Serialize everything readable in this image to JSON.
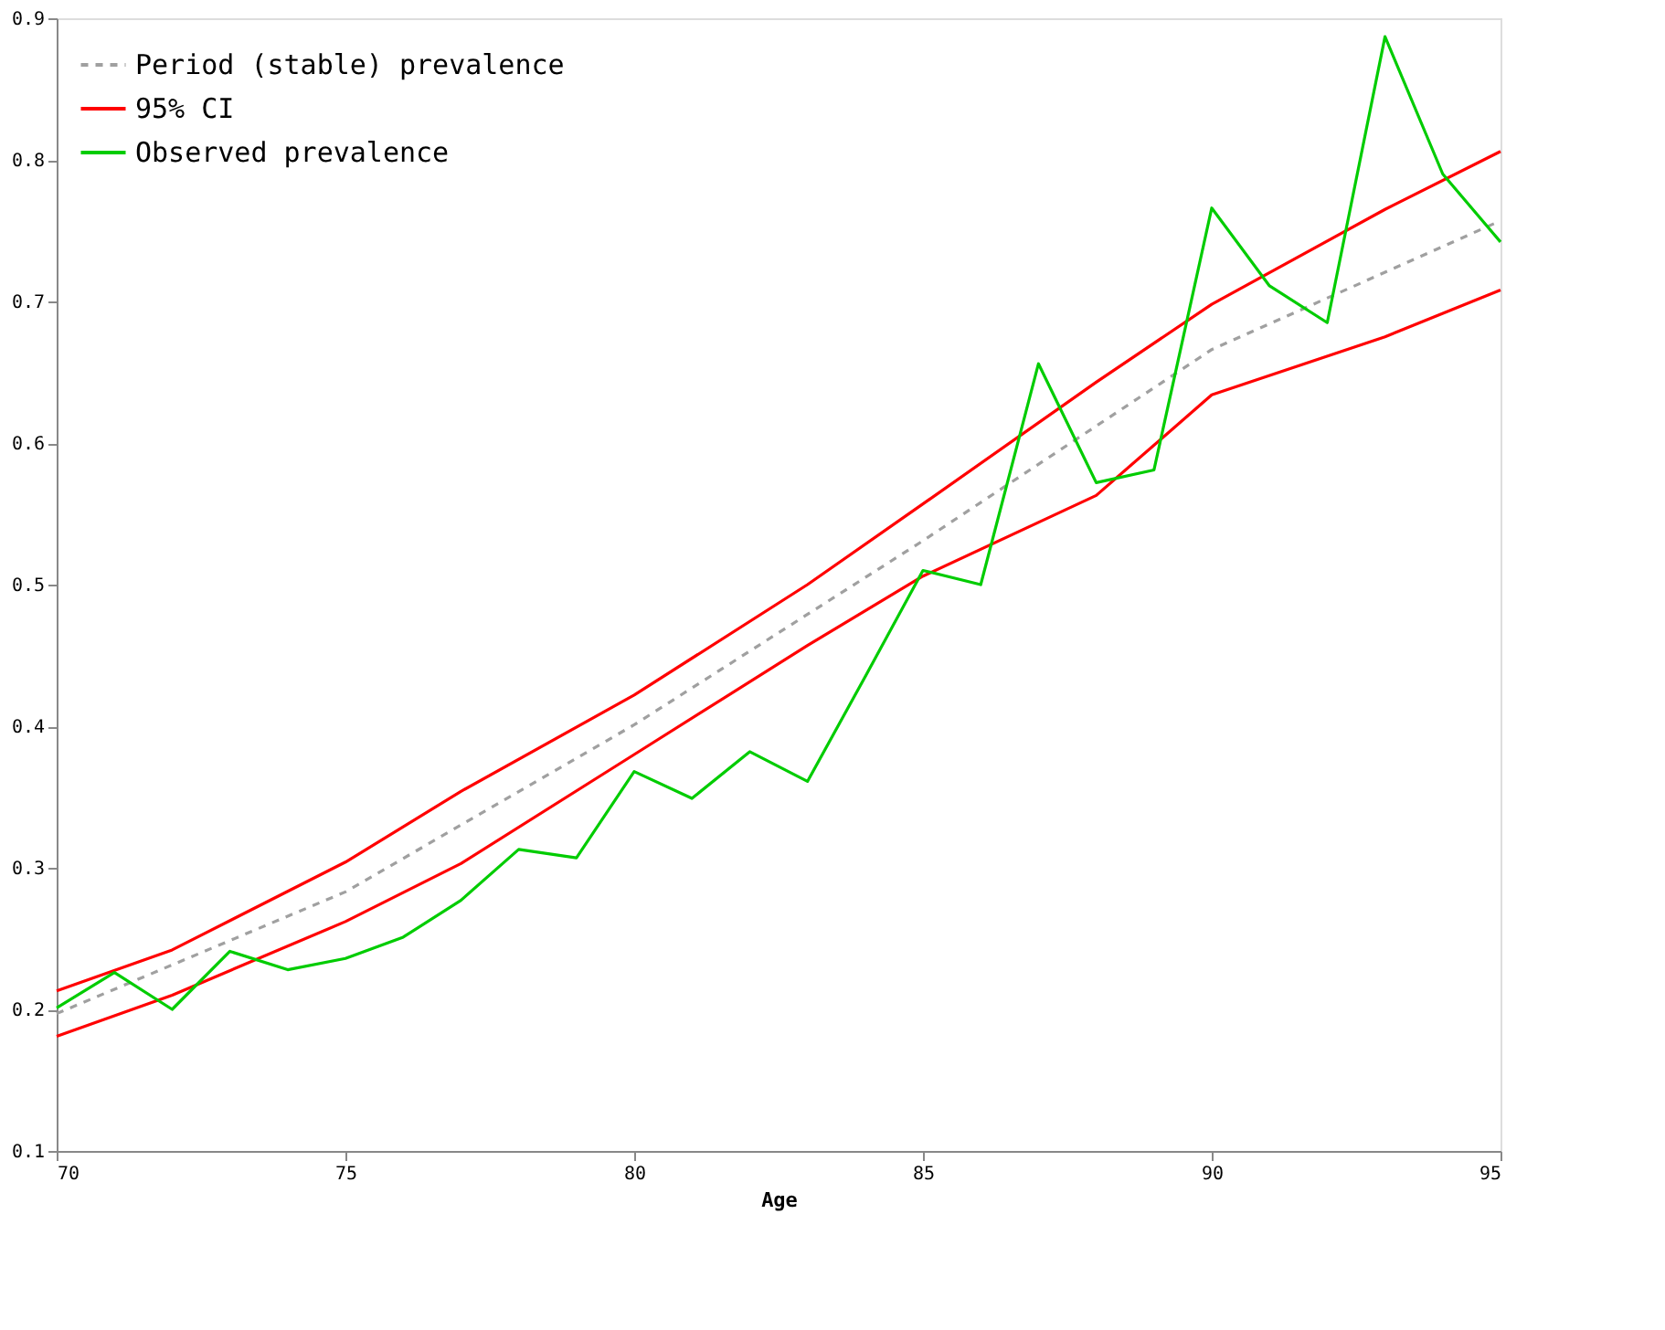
{
  "chart_data": {
    "type": "line",
    "xlabel": "Age",
    "x": [
      70,
      71,
      72,
      73,
      74,
      75,
      76,
      77,
      78,
      79,
      80,
      81,
      82,
      83,
      84,
      85,
      86,
      87,
      88,
      89,
      90,
      91,
      92,
      93,
      94,
      95
    ],
    "series": [
      {
        "name": "Period (stable) prevalence",
        "color": "#a0a0a0",
        "line_style": "dashed",
        "x": [
          70,
          75,
          80,
          85,
          90,
          95
        ],
        "values": [
          0.197,
          0.283,
          0.401,
          0.531,
          0.666,
          0.757
        ]
      },
      {
        "name": "95% CI",
        "color": "#ff0000",
        "line_style": "solid",
        "x": [
          70,
          72,
          75,
          77,
          80,
          83,
          85,
          88,
          90,
          93,
          95
        ],
        "values": [
          0.213,
          0.242,
          0.304,
          0.354,
          0.422,
          0.5,
          0.557,
          0.643,
          0.698,
          0.765,
          0.806
        ]
      },
      {
        "color": "#ff0000",
        "x": [
          70,
          72,
          75,
          77,
          80,
          83,
          85,
          88,
          90,
          93,
          95
        ],
        "values": [
          0.181,
          0.21,
          0.262,
          0.303,
          0.38,
          0.457,
          0.506,
          0.563,
          0.634,
          0.675,
          0.708
        ]
      },
      {
        "name": "Observed prevalence",
        "color": "#00cc00",
        "line_style": "solid",
        "values": [
          0.201,
          0.226,
          0.2,
          0.241,
          0.228,
          0.236,
          0.251,
          0.277,
          0.313,
          0.307,
          0.368,
          0.349,
          0.382,
          0.361,
          0.435,
          0.51,
          0.5,
          0.656,
          0.572,
          0.581,
          0.766,
          0.711,
          0.685,
          0.887,
          0.79,
          0.742
        ]
      }
    ],
    "xlim": [
      70,
      95
    ],
    "xticks": [
      70,
      75,
      80,
      85,
      90,
      95
    ],
    "ylim": [
      0.1,
      0.9
    ],
    "yticks": [
      0.1,
      0.2,
      0.3,
      0.4,
      0.5,
      0.6,
      0.7,
      0.8,
      0.9
    ],
    "grid": false,
    "legend": "top left"
  }
}
